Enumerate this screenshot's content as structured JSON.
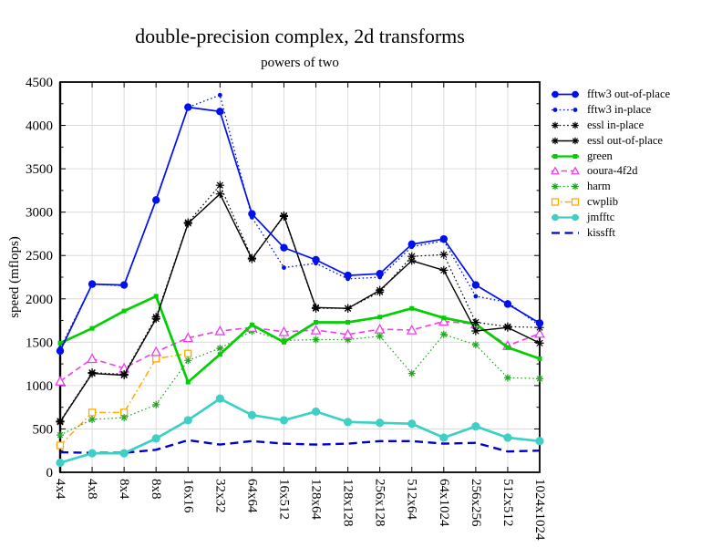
{
  "chart_data": {
    "type": "line",
    "title": "double-precision complex, 2d transforms",
    "subtitle": "powers of two",
    "ylabel": "speed (mflops)",
    "xlabel": "",
    "ylim": [
      0,
      4500
    ],
    "ytick_step": 500,
    "ytick_labels": [
      "0",
      "500",
      "1000",
      "1500",
      "2000",
      "2500",
      "3000",
      "3500",
      "4000",
      "4500"
    ],
    "grid": true,
    "legend_position": "right",
    "categories": [
      "4x4",
      "4x8",
      "8x4",
      "8x8",
      "16x16",
      "32x32",
      "64x64",
      "16x512",
      "128x64",
      "128x128",
      "256x128",
      "512x64",
      "64x1024",
      "256x256",
      "512x512",
      "1024x1024"
    ],
    "series": [
      {
        "name": "fftw3 out-of-place",
        "color": "#0011ee",
        "line": "solid",
        "marker": "circle",
        "marker_size": 4.2,
        "width": 1.7,
        "values": [
          1400,
          2170,
          2160,
          3140,
          4210,
          4160,
          2980,
          2590,
          2450,
          2270,
          2290,
          2630,
          2690,
          2160,
          1940,
          1720
        ]
      },
      {
        "name": "fftw3 in-place",
        "color": "#0011ee",
        "line": "dotted",
        "marker": "dot",
        "marker_size": 2.4,
        "width": 1.3,
        "values": [
          1430,
          2170,
          2150,
          3150,
          4210,
          4350,
          2940,
          2360,
          2410,
          2230,
          2250,
          2600,
          2670,
          2030,
          1960,
          1690
        ]
      },
      {
        "name": "essl in-place",
        "color": "#000000",
        "line": "dotted",
        "marker": "star",
        "marker_size": 4.6,
        "width": 1.2,
        "values": [
          590,
          1150,
          1130,
          1790,
          2880,
          3310,
          2470,
          2950,
          1890,
          1890,
          2080,
          2490,
          2510,
          1730,
          1680,
          1670
        ]
      },
      {
        "name": "essl out-of-place",
        "color": "#000000",
        "line": "solid",
        "marker": "star",
        "marker_size": 4.6,
        "width": 1.4,
        "values": [
          580,
          1140,
          1120,
          1770,
          2870,
          3210,
          2460,
          2960,
          1900,
          1890,
          2100,
          2440,
          2330,
          1630,
          1670,
          1490
        ]
      },
      {
        "name": "green",
        "color": "#00cf00",
        "line": "solid",
        "marker": "square-filled",
        "marker_size": 2.5,
        "width": 2.7,
        "values": [
          1490,
          1660,
          1860,
          2030,
          1040,
          1360,
          1700,
          1500,
          1730,
          1730,
          1790,
          1890,
          1780,
          1710,
          1440,
          1310
        ]
      },
      {
        "name": "ooura-4f2d",
        "color": "#ee3cee",
        "line": "dashed",
        "marker": "triangle-open",
        "marker_size": 4.8,
        "width": 1.6,
        "values": [
          1050,
          1310,
          1200,
          1390,
          1550,
          1630,
          1670,
          1620,
          1640,
          1590,
          1650,
          1640,
          1740,
          1710,
          1460,
          1600
        ]
      },
      {
        "name": "harm",
        "color": "#1fa51f",
        "line": "dotted",
        "marker": "star",
        "marker_size": 4.0,
        "width": 1.2,
        "values": [
          430,
          610,
          630,
          780,
          1290,
          1430,
          1630,
          1520,
          1530,
          1530,
          1570,
          1140,
          1590,
          1470,
          1090,
          1080
        ]
      },
      {
        "name": "cwplib",
        "color": "#ffaa00",
        "line": "dashdot",
        "marker": "square-open",
        "marker_size": 3.5,
        "width": 1.5,
        "values": [
          310,
          690,
          690,
          1310,
          1370,
          null,
          null,
          null,
          null,
          null,
          null,
          null,
          null,
          null,
          null,
          null
        ]
      },
      {
        "name": "jmfftc",
        "color": "#3ed0c6",
        "line": "solid",
        "marker": "circle",
        "marker_size": 4.6,
        "width": 2.7,
        "values": [
          110,
          220,
          220,
          390,
          600,
          850,
          660,
          600,
          700,
          580,
          570,
          560,
          400,
          530,
          400,
          360
        ]
      },
      {
        "name": "kissfft",
        "color": "#0000cd",
        "line": "dashed-long",
        "marker": "none",
        "marker_size": 0,
        "width": 2.4,
        "values": [
          230,
          225,
          225,
          260,
          370,
          320,
          360,
          330,
          320,
          330,
          360,
          360,
          330,
          340,
          240,
          250
        ]
      }
    ]
  }
}
